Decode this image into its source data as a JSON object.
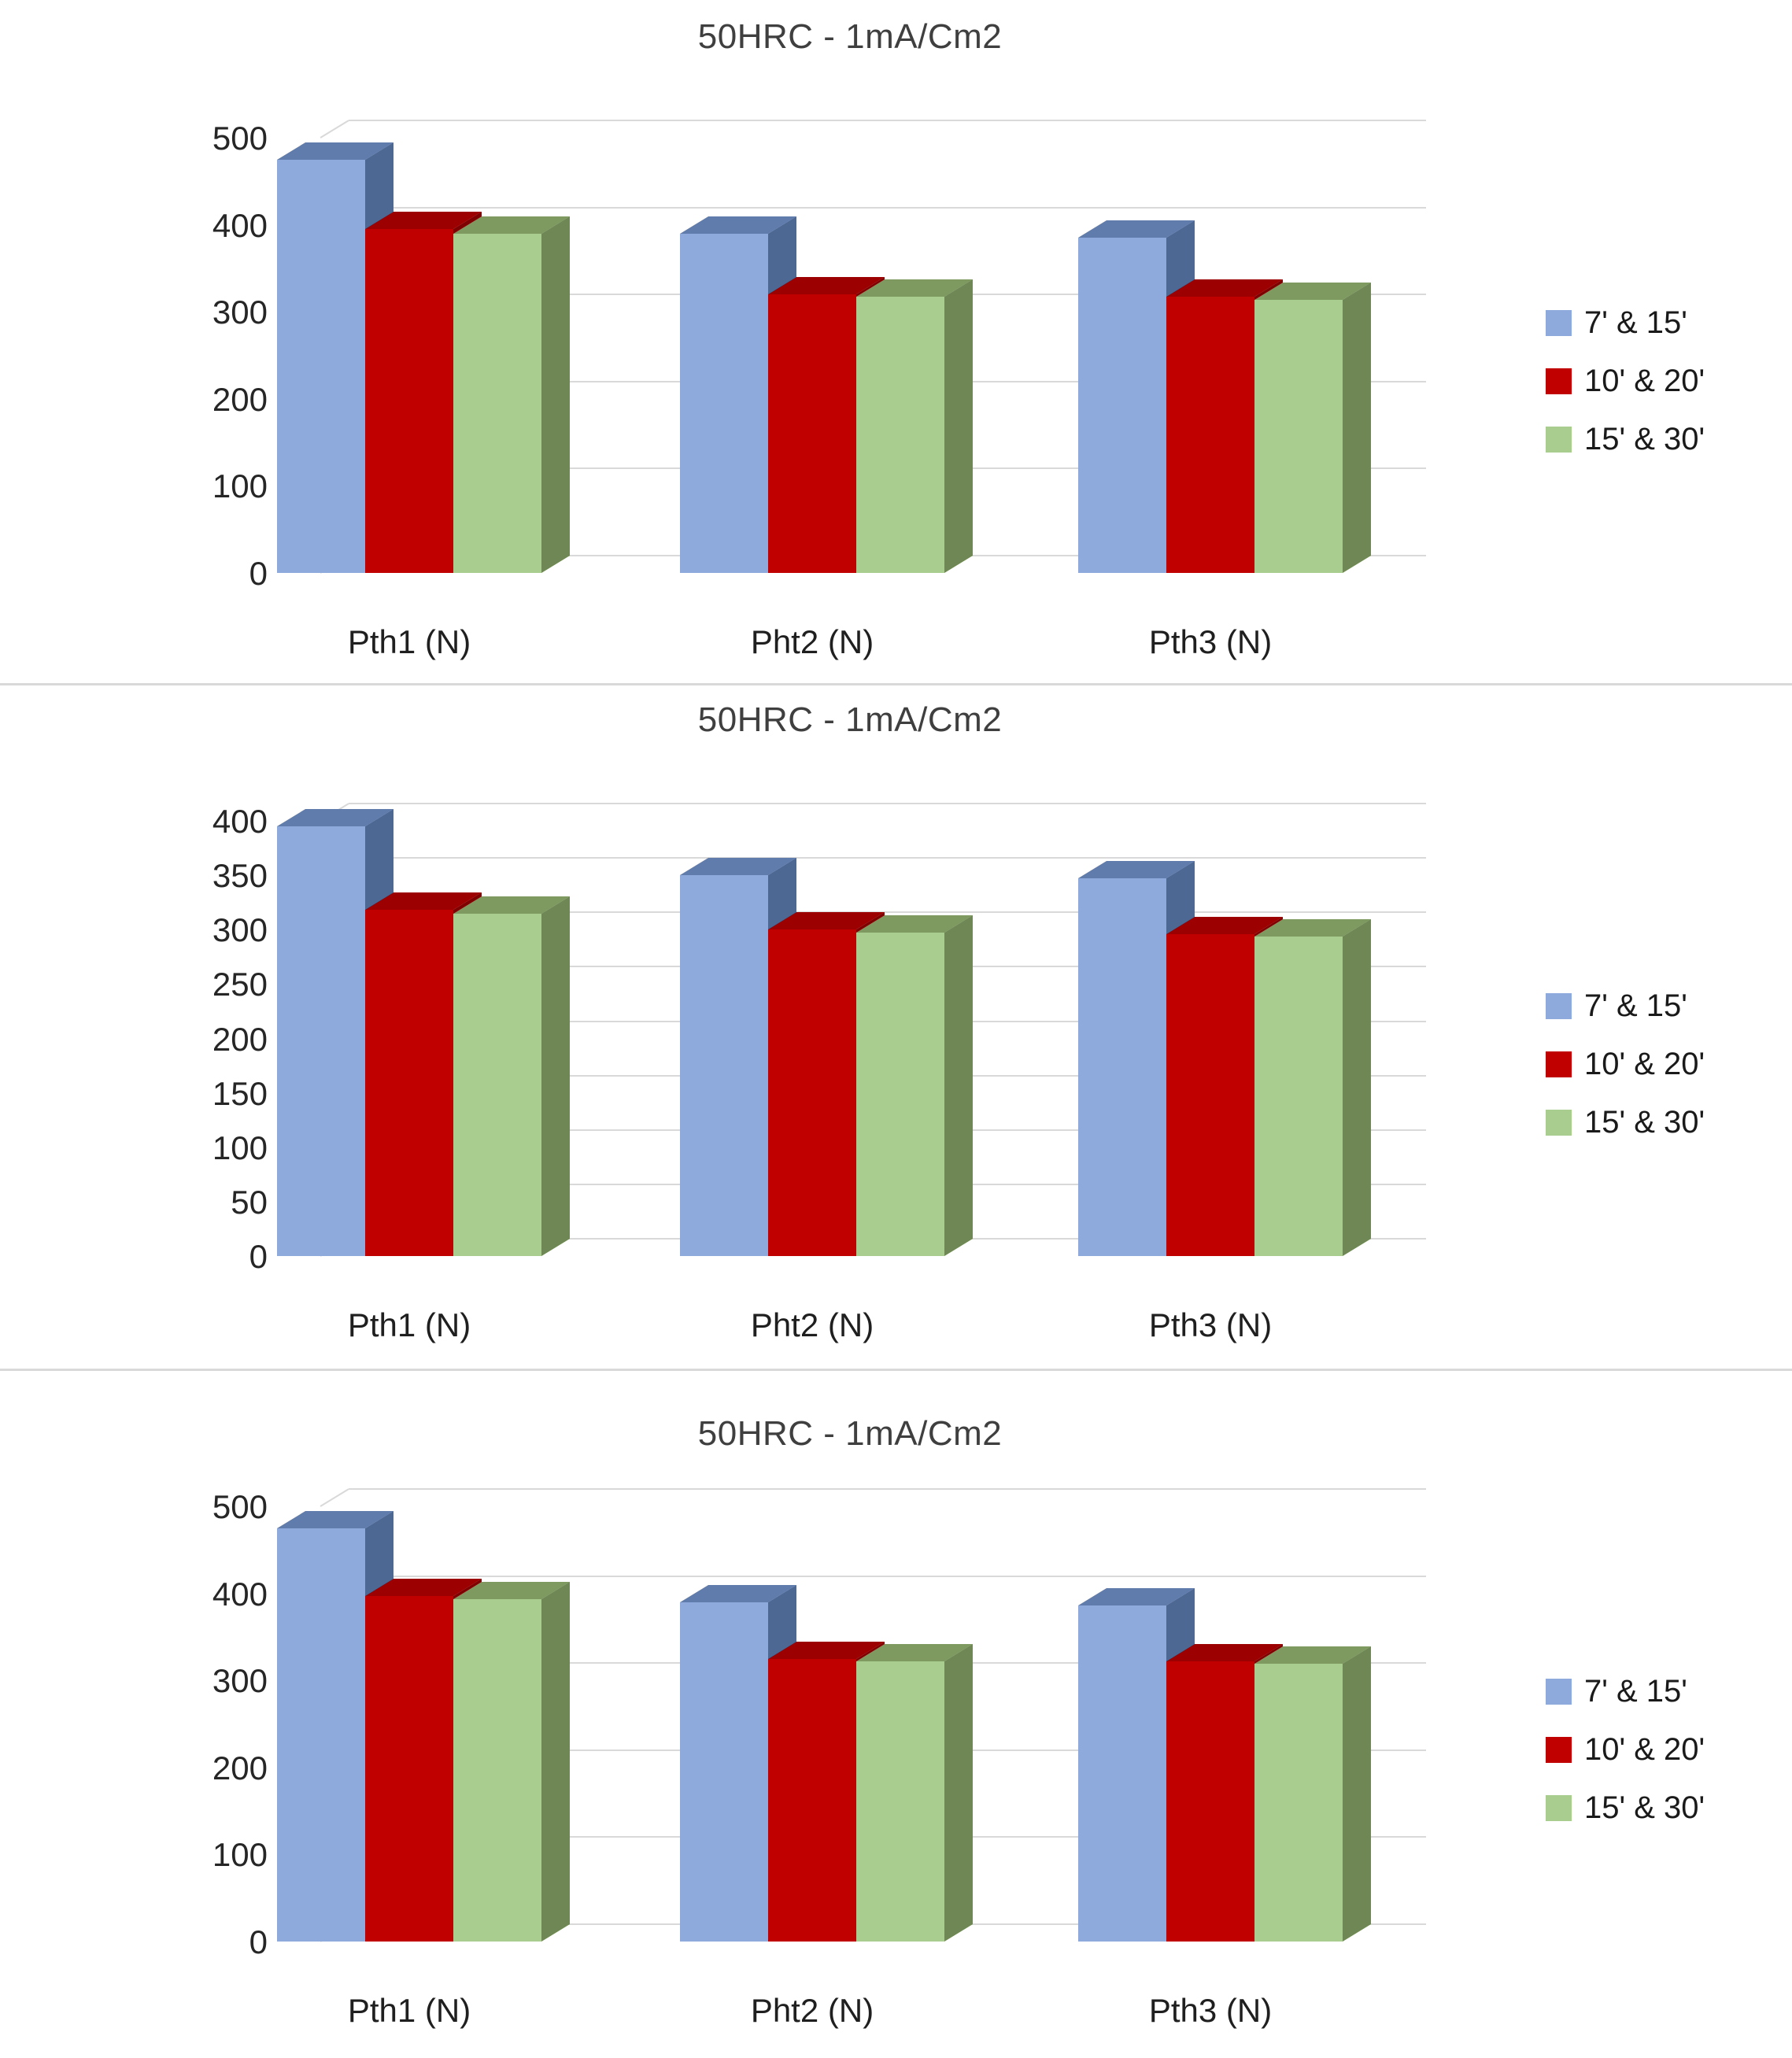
{
  "style": {
    "background": "#ffffff",
    "grid_color": "#d9d9d9",
    "divider_color": "#d9d9d9",
    "title_color": "#3f3f3f",
    "axis_label_color": "#262626",
    "category_label_color": "#1f1f1f",
    "legend_text_color": "#1a1a1a",
    "series_colors": {
      "blue": {
        "front": "#8EA9DB",
        "top": "#5F7CAD",
        "side": "#4E6894"
      },
      "red": {
        "front": "#C00000",
        "top": "#9C0000",
        "side": "#7E0000"
      },
      "green": {
        "front": "#A9CD8E",
        "top": "#7E9A60",
        "side": "#6E8754"
      }
    }
  },
  "legend": {
    "position": "right",
    "items": [
      {
        "label": "7' & 15'",
        "series": "blue"
      },
      {
        "label": "10' & 20'",
        "series": "red"
      },
      {
        "label": "15' & 30'",
        "series": "green"
      }
    ]
  },
  "chart_data": [
    {
      "type": "bar",
      "variant": "3d-column",
      "title": "50HRC - 1mA/Cm2",
      "categories": [
        "Pth1 (N)",
        "Pht2 (N)",
        "Pth3 (N)"
      ],
      "series": [
        {
          "name": "7' & 15'",
          "color_key": "blue",
          "values": [
            475,
            390,
            385
          ]
        },
        {
          "name": "10' & 20'",
          "color_key": "red",
          "values": [
            395,
            320,
            317
          ]
        },
        {
          "name": "15' & 30'",
          "color_key": "green",
          "values": [
            390,
            317,
            314
          ]
        }
      ],
      "xlabel": "",
      "ylabel": "",
      "ylim": [
        0,
        500
      ],
      "ytick_step": 100,
      "yticks": [
        0,
        100,
        200,
        300,
        400,
        500
      ],
      "grid": true,
      "legend_position": "right"
    },
    {
      "type": "bar",
      "variant": "3d-column",
      "title": "50HRC - 1mA/Cm2",
      "categories": [
        "Pth1 (N)",
        "Pht2 (N)",
        "Pth3 (N)"
      ],
      "series": [
        {
          "name": "7' & 15'",
          "color_key": "blue",
          "values": [
            395,
            350,
            347
          ]
        },
        {
          "name": "10' & 20'",
          "color_key": "red",
          "values": [
            318,
            300,
            296
          ]
        },
        {
          "name": "15' & 30'",
          "color_key": "green",
          "values": [
            315,
            297,
            294
          ]
        }
      ],
      "xlabel": "",
      "ylabel": "",
      "ylim": [
        0,
        400
      ],
      "ytick_step": 50,
      "yticks": [
        0,
        50,
        100,
        150,
        200,
        250,
        300,
        350,
        400
      ],
      "grid": true,
      "legend_position": "right"
    },
    {
      "type": "bar",
      "variant": "3d-column",
      "title": "50HRC - 1mA/Cm2",
      "categories": [
        "Pth1 (N)",
        "Pht2 (N)",
        "Pth3 (N)"
      ],
      "series": [
        {
          "name": "7' & 15'",
          "color_key": "blue",
          "values": [
            475,
            390,
            386
          ]
        },
        {
          "name": "10' & 20'",
          "color_key": "red",
          "values": [
            397,
            325,
            322
          ]
        },
        {
          "name": "15' & 30'",
          "color_key": "green",
          "values": [
            393,
            322,
            319
          ]
        }
      ],
      "xlabel": "",
      "ylabel": "",
      "ylim": [
        0,
        500
      ],
      "ytick_step": 100,
      "yticks": [
        0,
        100,
        200,
        300,
        400,
        500
      ],
      "grid": true,
      "legend_position": "right"
    }
  ]
}
